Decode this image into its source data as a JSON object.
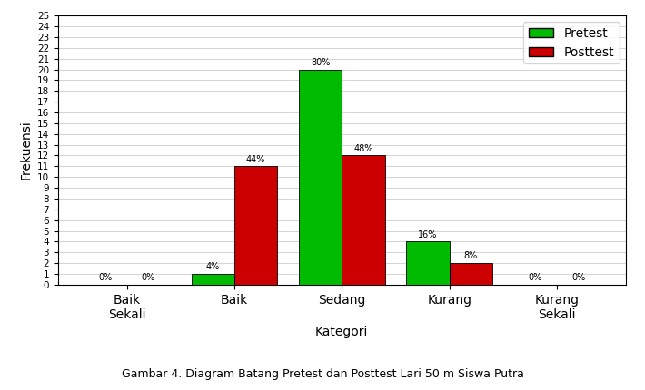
{
  "chart_data": {
    "type": "bar",
    "categories": [
      "Baik\nSekali",
      "Baik",
      "Sedang",
      "Kurang",
      "Kurang\nSekali"
    ],
    "series": [
      {
        "name": "Pretest",
        "color": "#00BB00",
        "values": [
          0,
          1,
          20,
          4,
          0
        ],
        "value_labels": [
          "0%",
          "4%",
          "80%",
          "16%",
          "0%"
        ]
      },
      {
        "name": "Posttest",
        "color": "#CC0000",
        "values": [
          0,
          11,
          12,
          2,
          0
        ],
        "value_labels": [
          "0%",
          "44%",
          "48%",
          "8%",
          "0%"
        ]
      }
    ],
    "xlabel": "Kategori",
    "ylabel": "Frekuensi",
    "annotations": [
      "Gambar 4. Diagram Batang Pretest dan Posttest Lari 50 m Siswa Putra"
    ],
    "ylim": [
      0,
      25
    ],
    "yticks": [
      0,
      1,
      2,
      3,
      4,
      5,
      6,
      7,
      8,
      9,
      10,
      11,
      12,
      13,
      14,
      15,
      16,
      17,
      18,
      19,
      20,
      21,
      22,
      23,
      24,
      25
    ],
    "grid": true,
    "legend": "upper right",
    "data_labels": true
  }
}
